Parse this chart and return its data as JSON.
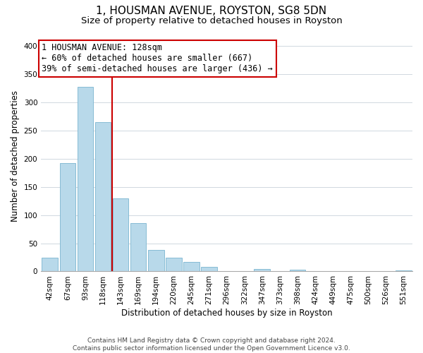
{
  "title": "1, HOUSMAN AVENUE, ROYSTON, SG8 5DN",
  "subtitle": "Size of property relative to detached houses in Royston",
  "xlabel": "Distribution of detached houses by size in Royston",
  "ylabel": "Number of detached properties",
  "bar_labels": [
    "42sqm",
    "67sqm",
    "93sqm",
    "118sqm",
    "143sqm",
    "169sqm",
    "194sqm",
    "220sqm",
    "245sqm",
    "271sqm",
    "296sqm",
    "322sqm",
    "347sqm",
    "373sqm",
    "398sqm",
    "424sqm",
    "449sqm",
    "475sqm",
    "500sqm",
    "526sqm",
    "551sqm"
  ],
  "bar_values": [
    25,
    193,
    328,
    265,
    130,
    86,
    38,
    25,
    17,
    8,
    0,
    0,
    4,
    0,
    3,
    0,
    0,
    0,
    0,
    0,
    2
  ],
  "bar_color": "#b8d9ea",
  "bar_edge_color": "#7ab5d0",
  "vline_x": 3.5,
  "vline_color": "#cc0000",
  "annotation_line1": "1 HOUSMAN AVENUE: 128sqm",
  "annotation_line2": "← 60% of detached houses are smaller (667)",
  "annotation_line3": "39% of semi-detached houses are larger (436) →",
  "annotation_box_color": "#ffffff",
  "annotation_box_edge_color": "#cc0000",
  "ylim": [
    0,
    410
  ],
  "yticks": [
    0,
    50,
    100,
    150,
    200,
    250,
    300,
    350,
    400
  ],
  "footer_line1": "Contains HM Land Registry data © Crown copyright and database right 2024.",
  "footer_line2": "Contains public sector information licensed under the Open Government Licence v3.0.",
  "background_color": "#ffffff",
  "grid_color": "#d0d8e0",
  "title_fontsize": 11,
  "subtitle_fontsize": 9.5,
  "axis_label_fontsize": 8.5,
  "tick_fontsize": 7.5,
  "annotation_fontsize": 8.5,
  "footer_fontsize": 6.5
}
